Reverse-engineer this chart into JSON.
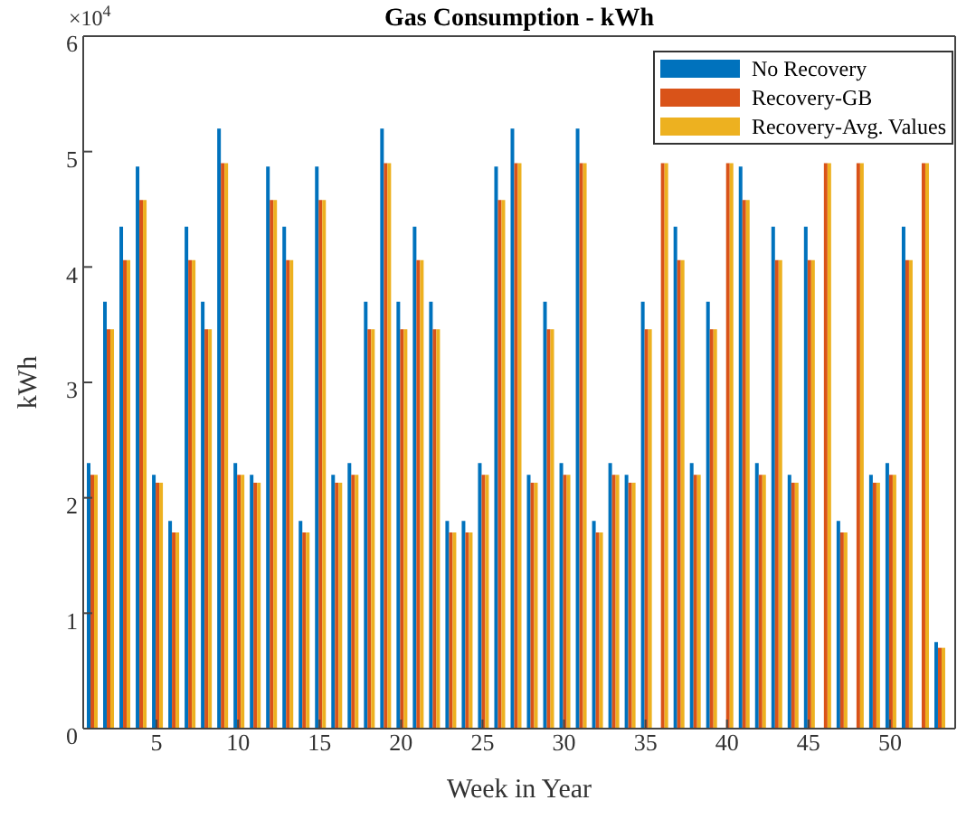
{
  "chart_data": {
    "type": "bar",
    "title": "Gas Consumption - kWh",
    "xlabel": "Week in Year",
    "ylabel": "kWh",
    "x": [
      1,
      2,
      3,
      4,
      5,
      6,
      7,
      8,
      9,
      10,
      11,
      12,
      13,
      14,
      15,
      16,
      17,
      18,
      19,
      20,
      21,
      22,
      23,
      24,
      25,
      26,
      27,
      28,
      29,
      30,
      31,
      32,
      33,
      34,
      35,
      36,
      37,
      38,
      39,
      40,
      41,
      42,
      43,
      44,
      45,
      46,
      47,
      48,
      49,
      50,
      51,
      52,
      53
    ],
    "series": [
      {
        "name": "No Recovery",
        "color": "#0072bd",
        "values": [
          2.3,
          3.7,
          4.35,
          4.87,
          2.2,
          1.8,
          4.35,
          3.7,
          5.2,
          2.3,
          2.2,
          4.87,
          4.35,
          1.8,
          4.87,
          2.2,
          2.3,
          3.7,
          5.2,
          3.7,
          4.35,
          3.7,
          1.8,
          1.8,
          2.3,
          4.87,
          5.2,
          2.2,
          3.7,
          2.3,
          5.2,
          1.8,
          2.3,
          2.2,
          3.7,
          null,
          4.35,
          2.3,
          3.7,
          null,
          4.87,
          2.3,
          4.35,
          2.2,
          4.35,
          null,
          1.8,
          null,
          2.2,
          2.3,
          4.35,
          null,
          0.75
        ]
      },
      {
        "name": "Recovery-GB",
        "color": "#d95319",
        "values": [
          2.2,
          3.46,
          4.06,
          4.58,
          2.13,
          1.7,
          4.06,
          3.46,
          4.9,
          2.2,
          2.13,
          4.58,
          4.06,
          1.7,
          4.58,
          2.13,
          2.2,
          3.46,
          4.9,
          3.46,
          4.06,
          3.46,
          1.7,
          1.7,
          2.2,
          4.58,
          4.9,
          2.13,
          3.46,
          2.2,
          4.9,
          1.7,
          2.2,
          2.13,
          3.46,
          4.9,
          4.06,
          2.2,
          3.46,
          4.9,
          4.58,
          2.2,
          4.06,
          2.13,
          4.06,
          4.9,
          1.7,
          4.9,
          2.13,
          2.2,
          4.06,
          4.9,
          0.7
        ]
      },
      {
        "name": "Recovery-Avg. Values",
        "color": "#edb120",
        "values": [
          2.2,
          3.46,
          4.06,
          4.58,
          2.13,
          1.7,
          4.06,
          3.46,
          4.9,
          2.2,
          2.13,
          4.58,
          4.06,
          1.7,
          4.58,
          2.13,
          2.2,
          3.46,
          4.9,
          3.46,
          4.06,
          3.46,
          1.7,
          1.7,
          2.2,
          4.58,
          4.9,
          2.13,
          3.46,
          2.2,
          4.9,
          1.7,
          2.2,
          2.13,
          3.46,
          4.9,
          4.06,
          2.2,
          3.46,
          4.9,
          4.58,
          2.2,
          4.06,
          2.13,
          4.06,
          4.9,
          1.7,
          4.9,
          2.13,
          2.2,
          4.06,
          4.9,
          0.7
        ]
      }
    ],
    "xlim": [
      0.5,
      54
    ],
    "xticks": [
      5,
      10,
      15,
      20,
      25,
      30,
      35,
      40,
      45,
      50
    ],
    "ylim": [
      0,
      6
    ],
    "yticks": [
      0,
      1,
      2,
      3,
      4,
      5,
      6
    ],
    "annotations": [
      "×10$^{4}$"
    ],
    "legend": "top right",
    "grid": false
  }
}
